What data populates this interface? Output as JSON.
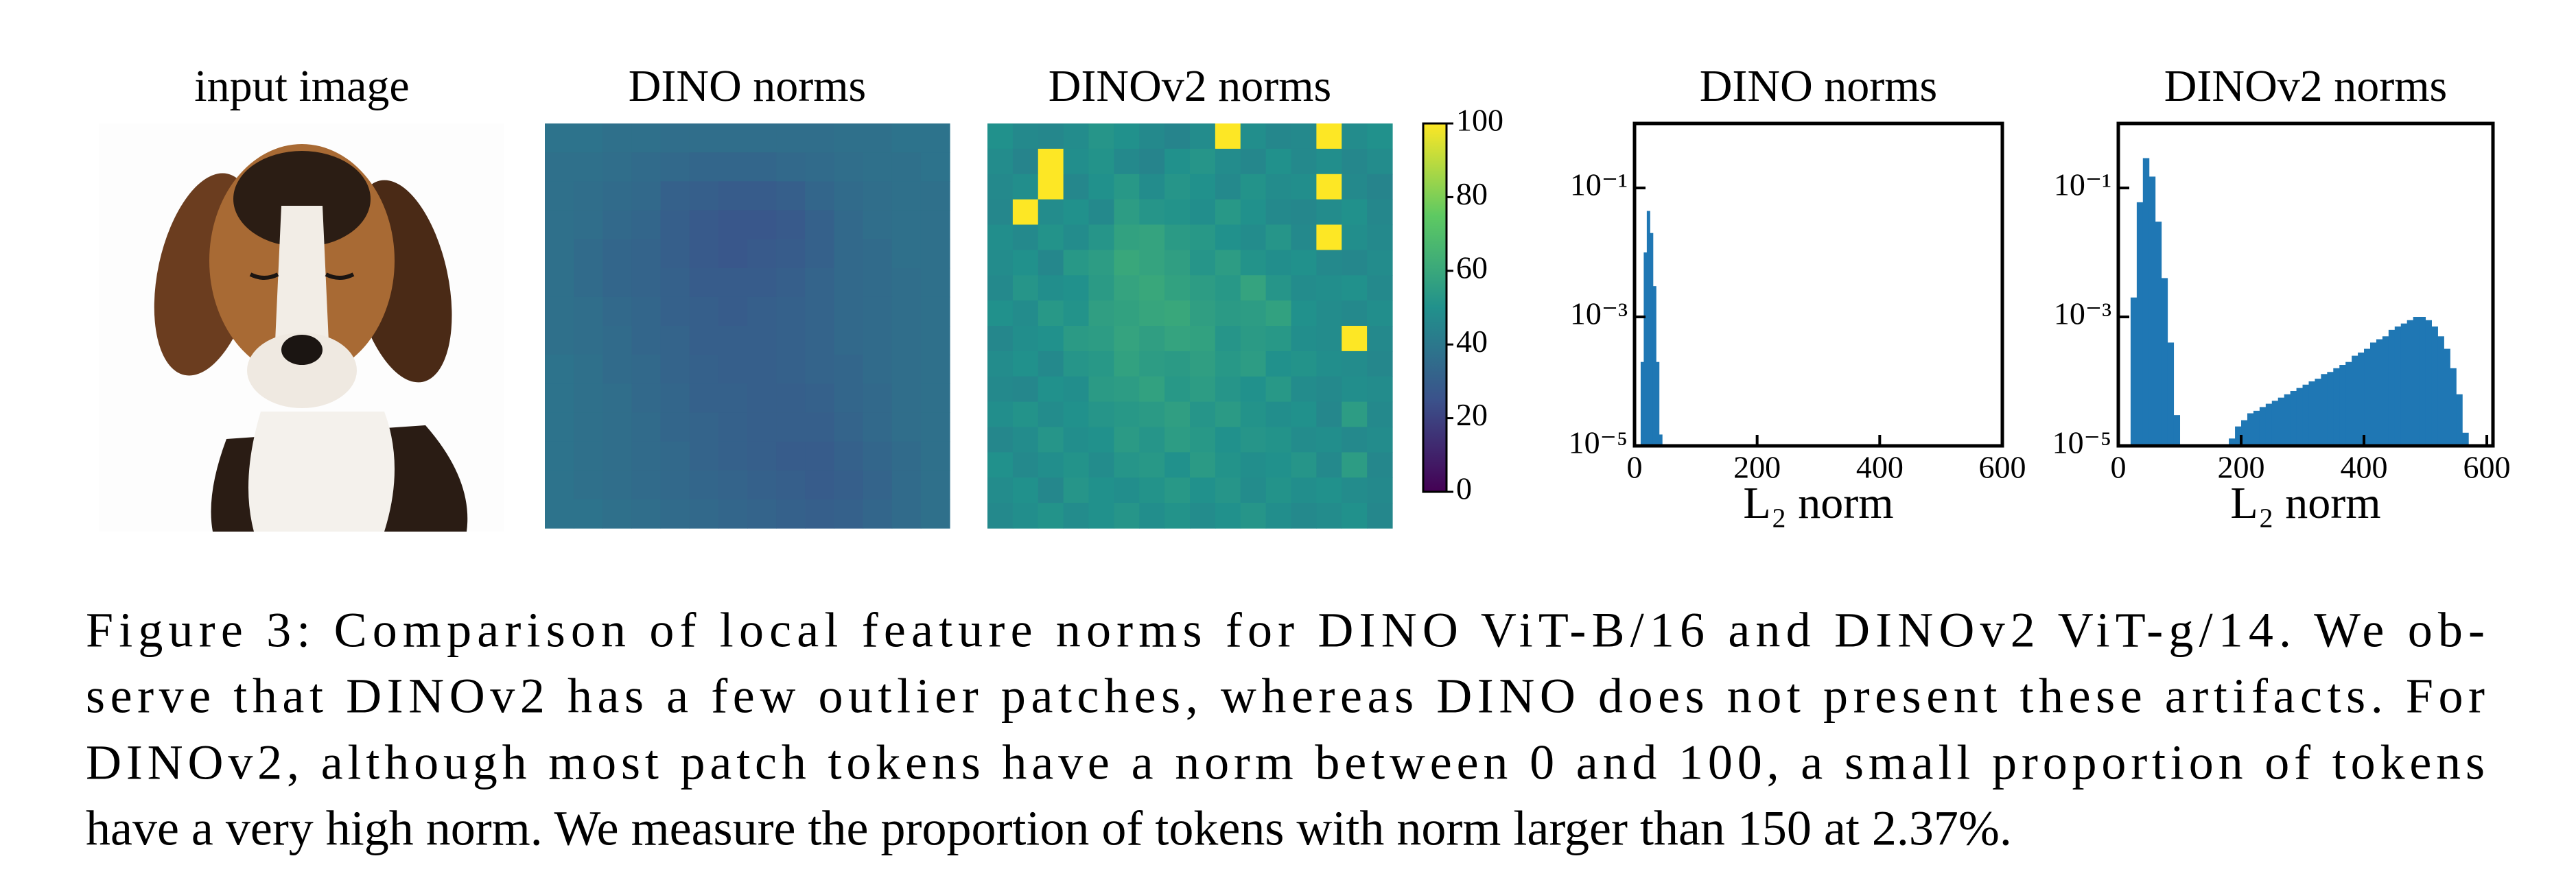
{
  "input_image": {
    "title": "input image"
  },
  "chart_data": [
    {
      "type": "heatmap",
      "title": "DINO norms",
      "clim": [
        0,
        100
      ],
      "colormap": [
        "#440154",
        "#3b528b",
        "#21918c",
        "#5ec962",
        "#fde725"
      ],
      "values": [
        [
          38,
          38,
          37,
          37,
          36,
          36,
          36,
          36,
          36,
          36,
          37,
          37,
          38,
          38
        ],
        [
          37,
          37,
          36,
          35,
          34,
          33,
          33,
          33,
          34,
          35,
          36,
          37,
          37,
          38
        ],
        [
          37,
          36,
          35,
          34,
          31,
          30,
          29,
          29,
          30,
          33,
          35,
          36,
          37,
          37
        ],
        [
          37,
          36,
          34,
          33,
          30,
          28,
          27,
          27,
          28,
          31,
          34,
          36,
          37,
          37
        ],
        [
          37,
          35,
          33,
          32,
          30,
          28,
          27,
          28,
          29,
          31,
          34,
          35,
          37,
          37
        ],
        [
          37,
          35,
          33,
          32,
          31,
          29,
          29,
          29,
          30,
          32,
          34,
          35,
          36,
          37
        ],
        [
          37,
          36,
          34,
          33,
          31,
          30,
          29,
          30,
          31,
          32,
          34,
          35,
          36,
          37
        ],
        [
          37,
          36,
          35,
          33,
          32,
          30,
          30,
          30,
          31,
          32,
          34,
          35,
          36,
          37
        ],
        [
          38,
          37,
          35,
          34,
          32,
          31,
          30,
          30,
          31,
          32,
          33,
          35,
          36,
          37
        ],
        [
          38,
          37,
          36,
          34,
          33,
          31,
          31,
          30,
          30,
          31,
          33,
          34,
          36,
          37
        ],
        [
          38,
          37,
          36,
          35,
          33,
          32,
          31,
          30,
          30,
          30,
          32,
          34,
          36,
          37
        ],
        [
          38,
          37,
          36,
          35,
          34,
          32,
          31,
          30,
          29,
          29,
          31,
          33,
          35,
          37
        ],
        [
          38,
          37,
          36,
          35,
          34,
          33,
          32,
          31,
          30,
          29,
          30,
          32,
          35,
          37
        ],
        [
          38,
          38,
          37,
          36,
          35,
          34,
          33,
          32,
          31,
          30,
          31,
          33,
          35,
          37
        ]
      ]
    },
    {
      "type": "heatmap",
      "title": "DINOv2 norms",
      "clim": [
        0,
        100
      ],
      "colormap": [
        "#440154",
        "#3b528b",
        "#21918c",
        "#5ec962",
        "#fde725"
      ],
      "colorbar_ticks": [
        0,
        20,
        40,
        60,
        80,
        100
      ],
      "values": [
        [
          50,
          47,
          46,
          48,
          52,
          50,
          47,
          45,
          48,
          100,
          49,
          46,
          47,
          100,
          48,
          50
        ],
        [
          48,
          45,
          100,
          49,
          51,
          47,
          45,
          50,
          52,
          48,
          46,
          50,
          47,
          49,
          46,
          48
        ],
        [
          47,
          49,
          100,
          46,
          50,
          53,
          48,
          52,
          50,
          47,
          51,
          48,
          49,
          100,
          47,
          45
        ],
        [
          46,
          100,
          48,
          50,
          47,
          55,
          52,
          51,
          49,
          53,
          50,
          47,
          46,
          48,
          50,
          46
        ],
        [
          49,
          47,
          51,
          48,
          52,
          57,
          58,
          54,
          53,
          50,
          48,
          52,
          47,
          100,
          49,
          47
        ],
        [
          48,
          50,
          46,
          53,
          55,
          60,
          58,
          56,
          52,
          55,
          51,
          49,
          50,
          47,
          46,
          48
        ],
        [
          47,
          52,
          49,
          50,
          54,
          58,
          60,
          57,
          55,
          53,
          58,
          52,
          48,
          49,
          50,
          47
        ],
        [
          50,
          48,
          53,
          51,
          56,
          57,
          59,
          60,
          56,
          54,
          55,
          57,
          50,
          48,
          47,
          49
        ],
        [
          46,
          49,
          50,
          54,
          55,
          58,
          56,
          58,
          57,
          52,
          54,
          53,
          49,
          48,
          100,
          47
        ],
        [
          48,
          50,
          47,
          52,
          53,
          57,
          55,
          54,
          56,
          53,
          55,
          50,
          51,
          49,
          48,
          46
        ],
        [
          47,
          46,
          50,
          49,
          54,
          55,
          57,
          53,
          55,
          52,
          50,
          53,
          48,
          47,
          49,
          48
        ],
        [
          49,
          51,
          48,
          50,
          52,
          53,
          54,
          56,
          52,
          54,
          51,
          49,
          50,
          46,
          55,
          47
        ],
        [
          46,
          48,
          52,
          49,
          50,
          54,
          52,
          55,
          53,
          50,
          52,
          51,
          48,
          49,
          47,
          48
        ],
        [
          50,
          47,
          49,
          51,
          48,
          52,
          53,
          50,
          54,
          51,
          49,
          50,
          52,
          47,
          55,
          46
        ],
        [
          48,
          50,
          46,
          52,
          50,
          49,
          51,
          53,
          50,
          52,
          48,
          51,
          49,
          50,
          48,
          47
        ],
        [
          47,
          49,
          51,
          48,
          50,
          52,
          49,
          51,
          48,
          50,
          52,
          49,
          47,
          48,
          50,
          46
        ]
      ]
    },
    {
      "type": "histogram",
      "title": "DINO norms",
      "color": "#1f77b4",
      "log_y": true,
      "xlabel": "L₂ norm",
      "xlim": [
        0,
        600
      ],
      "xticks": [
        0,
        200,
        400,
        600
      ],
      "ylim": [
        1e-05,
        1
      ],
      "yticks": [
        {
          "value": 0.1,
          "label": "10⁻¹"
        },
        {
          "value": 0.001,
          "label": "10⁻³"
        },
        {
          "value": 1e-05,
          "label": "10⁻⁵"
        }
      ],
      "bins": [
        10,
        15,
        20,
        25,
        30,
        35,
        40,
        45
      ],
      "counts": [
        0.0002,
        0.01,
        0.044,
        0.02,
        0.003,
        0.0002,
        1.5e-05
      ]
    },
    {
      "type": "histogram",
      "title": "DINOv2 norms",
      "color": "#1f77b4",
      "log_y": true,
      "xlabel": "L₂ norm",
      "xlim": [
        0,
        610
      ],
      "xticks": [
        0,
        200,
        400,
        600
      ],
      "ylim": [
        1e-05,
        1
      ],
      "yticks": [
        {
          "value": 0.1,
          "label": "10⁻¹"
        },
        {
          "value": 0.001,
          "label": "10⁻³"
        },
        {
          "value": 1e-05,
          "label": "10⁻⁵"
        }
      ],
      "bins": [
        20,
        30,
        40,
        50,
        60,
        70,
        80,
        90,
        100,
        110,
        120,
        130,
        140,
        150,
        160,
        170,
        180,
        190,
        200,
        210,
        220,
        230,
        240,
        250,
        260,
        270,
        280,
        290,
        300,
        310,
        320,
        330,
        340,
        350,
        360,
        370,
        380,
        390,
        400,
        410,
        420,
        430,
        440,
        450,
        460,
        470,
        480,
        490,
        500,
        510,
        520,
        530,
        540,
        550,
        560,
        570
      ],
      "counts": [
        0.002,
        0.06,
        0.29,
        0.15,
        0.03,
        0.004,
        0.0004,
        3e-05,
        0,
        0,
        0,
        0,
        0,
        0,
        0,
        0,
        1.3e-05,
        2e-05,
        2.5e-05,
        3.2e-05,
        3.5e-05,
        4e-05,
        4.5e-05,
        5e-05,
        5.6e-05,
        6.3e-05,
        7.1e-05,
        7.9e-05,
        8.9e-05,
        0.0001,
        0.00011,
        0.00013,
        0.00014,
        0.00016,
        0.00018,
        0.0002,
        0.00025,
        0.00028,
        0.00032,
        0.0004,
        0.00045,
        0.0005,
        0.00063,
        0.00071,
        0.00079,
        0.00089,
        0.001,
        0.001,
        0.00089,
        0.00071,
        0.0005,
        0.00032,
        0.00016,
        6.3e-05,
        1.6e-05
      ]
    }
  ],
  "caption": [
    "Figure 3: Comparison of local feature norms for DINO ViT-B/16 and DINOv2 ViT-g/14.  We ob-",
    "serve that DINOv2 has a few outlier patches, whereas DINO does not present these artifacts.  For",
    "DINOv2, although most patch tokens have a norm between 0 and 100, a small proportion of tokens",
    "have a very high norm. We measure the proportion of tokens with norm larger than 150 at 2.37%."
  ]
}
